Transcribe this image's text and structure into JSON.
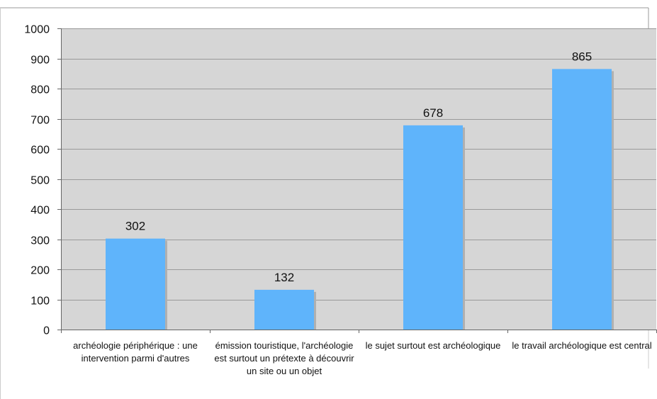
{
  "chart_data": {
    "type": "bar",
    "categories": [
      "archéologie périphérique : une intervention parmi d'autres",
      "émission touristique, l'archéologie est surtout un prétexte à découvrir un site ou un objet",
      "le sujet surtout est archéologique",
      "le travail archéologique est central"
    ],
    "values": [
      302,
      132,
      678,
      865
    ],
    "data_labels": [
      "302",
      "132",
      "678",
      "865"
    ],
    "title": "",
    "xlabel": "",
    "ylabel": "",
    "ylim": [
      0,
      1000
    ],
    "yticks": [
      0,
      100,
      200,
      300,
      400,
      500,
      600,
      700,
      800,
      900,
      1000
    ],
    "ytick_labels": [
      "0",
      "100",
      "200",
      "300",
      "400",
      "500",
      "600",
      "700",
      "800",
      "900",
      "1000"
    ],
    "grid": true,
    "legend": "none",
    "colors": {
      "bar": "#5fb4fb",
      "bar_shadow": "#b0b0b0",
      "plot_background": "#d6d6d6",
      "gridline": "#9a9a9a",
      "axis": "#666666",
      "frame": "#999999"
    }
  }
}
